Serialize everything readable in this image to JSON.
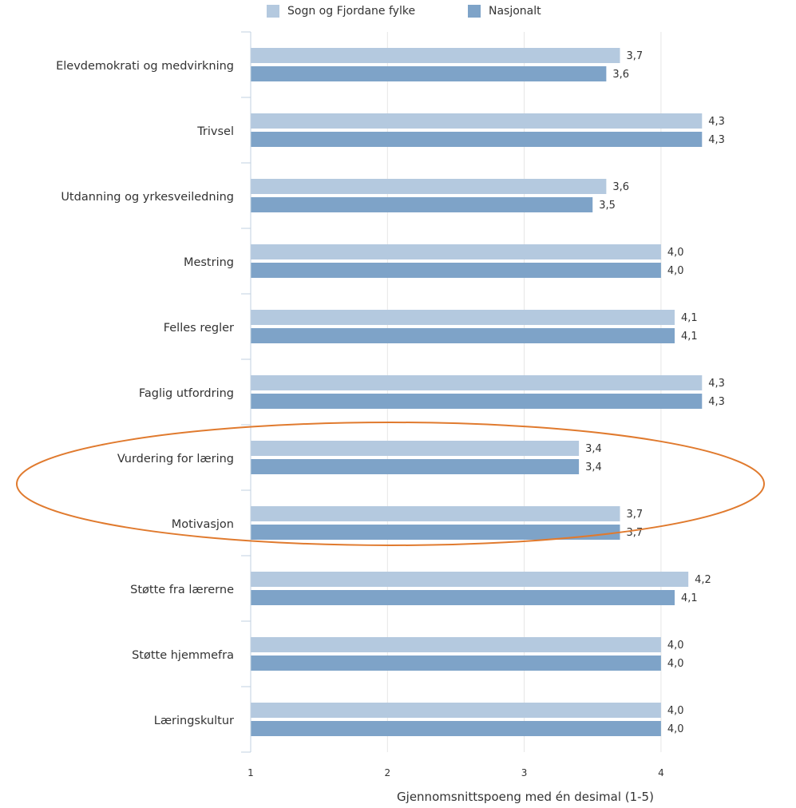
{
  "legend": {
    "series_a": "Sogn og Fjordane fylke",
    "series_b": "Nasjonalt"
  },
  "colors": {
    "series_a": "#b4c9df",
    "series_b": "#7ea3c8",
    "highlight_ellipse": "#e07a2e",
    "grid": "#e6e6e6",
    "axis": "#c0d0e0"
  },
  "chart_data": {
    "type": "bar",
    "orientation": "horizontal",
    "categories": [
      "Elevdemokrati og medvirkning",
      "Trivsel",
      "Utdanning og yrkesveiledning",
      "Mestring",
      "Felles regler",
      "Faglig utfordring",
      "Vurdering for læring",
      "Motivasjon",
      "Støtte fra lærerne",
      "Støtte hjemmefra",
      "Læringskultur"
    ],
    "series": [
      {
        "name": "Sogn og Fjordane fylke",
        "values": [
          3.7,
          4.3,
          3.6,
          4.0,
          4.1,
          4.3,
          3.4,
          3.7,
          4.2,
          4.0,
          4.0
        ],
        "labels": [
          "3,7",
          "4,3",
          "3,6",
          "4,0",
          "4,1",
          "4,3",
          "3,4",
          "3,7",
          "4,2",
          "4,0",
          "4,0"
        ]
      },
      {
        "name": "Nasjonalt",
        "values": [
          3.6,
          4.3,
          3.5,
          4.0,
          4.1,
          4.3,
          3.4,
          3.7,
          4.1,
          4.0,
          4.0
        ],
        "labels": [
          "3,6",
          "4,3",
          "3,5",
          "4,0",
          "4,1",
          "4,3",
          "3,4",
          "3,7",
          "4,1",
          "4,0",
          "4,0"
        ]
      }
    ],
    "xlim": [
      1,
      4.3
    ],
    "xticks": [
      "1",
      "2",
      "3",
      "4"
    ],
    "xlabel": "Gjennomsnittspoeng med én desimal (1-5)",
    "grid": true,
    "legend_position": "top",
    "highlighted_categories": [
      "Vurdering for læring",
      "Motivasjon"
    ]
  }
}
